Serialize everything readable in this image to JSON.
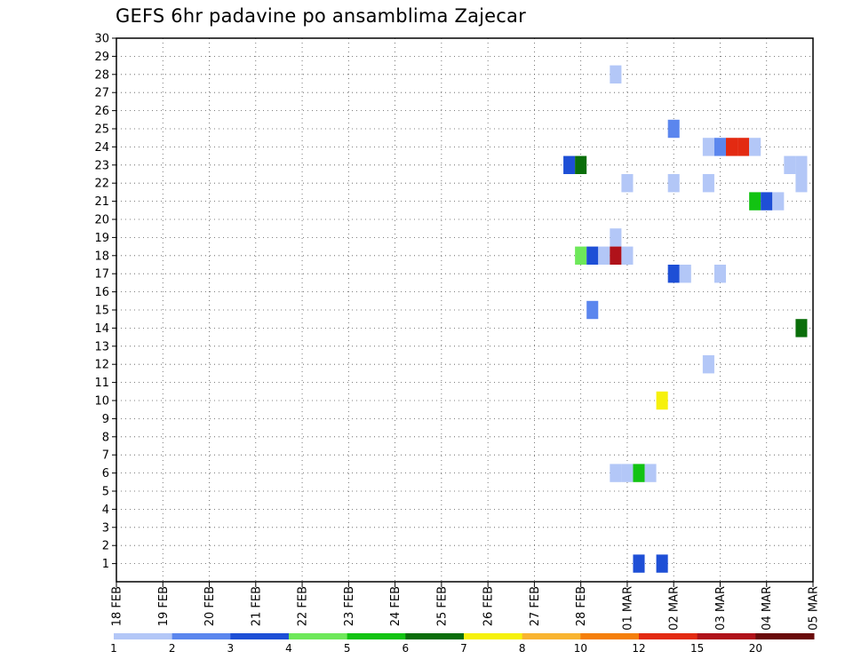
{
  "chart_data": {
    "type": "heatmap",
    "title": "GEFS 6hr padavine po ansamblima Zajecar",
    "x_tick_labels": [
      "18 FEB",
      "19 FEB",
      "20 FEB",
      "21 FEB",
      "22 FEB",
      "23 FEB",
      "24 FEB",
      "25 FEB",
      "26 FEB",
      "27 FEB",
      "28 FEB",
      "01 MAR",
      "02 MAR",
      "03 MAR",
      "04 MAR",
      "05 MAR"
    ],
    "y_tick_labels": [
      "1",
      "2",
      "3",
      "4",
      "5",
      "6",
      "7",
      "8",
      "9",
      "10",
      "11",
      "12",
      "13",
      "14",
      "15",
      "16",
      "17",
      "18",
      "19",
      "20",
      "21",
      "22",
      "23",
      "24",
      "25",
      "26",
      "27",
      "28",
      "29",
      "30"
    ],
    "xlim": [
      "18 FEB",
      "05 MAR"
    ],
    "ylim": [
      0,
      30
    ],
    "grid": true,
    "color_scale": {
      "colors": [
        "#b3c7f7",
        "#5b86ee",
        "#1e4fd6",
        "#6ee85a",
        "#12c312",
        "#0a6e0a",
        "#f6f10c",
        "#f9b430",
        "#f57f0a",
        "#e32a12",
        "#b0121a",
        "#6a0a0a"
      ],
      "labels": [
        "1",
        "2",
        "3",
        "4",
        "5",
        "6",
        "7",
        "8",
        "10",
        "12",
        "15",
        "20"
      ]
    },
    "cells": [
      {
        "date": "28 FEB",
        "hour": 18,
        "member": 28,
        "level": 0
      },
      {
        "date": "02 MAR",
        "hour": 0,
        "member": 25,
        "level": 1
      },
      {
        "date": "02 MAR",
        "hour": 18,
        "member": 24,
        "level": 0
      },
      {
        "date": "03 MAR",
        "hour": 0,
        "member": 24,
        "level": 1
      },
      {
        "date": "03 MAR",
        "hour": 6,
        "member": 24,
        "level": 9
      },
      {
        "date": "03 MAR",
        "hour": 12,
        "member": 24,
        "level": 9
      },
      {
        "date": "03 MAR",
        "hour": 18,
        "member": 24,
        "level": 0
      },
      {
        "date": "27 FEB",
        "hour": 18,
        "member": 23,
        "level": 2
      },
      {
        "date": "28 FEB",
        "hour": 0,
        "member": 23,
        "level": 5
      },
      {
        "date": "04 MAR",
        "hour": 12,
        "member": 23,
        "level": 0
      },
      {
        "date": "04 MAR",
        "hour": 18,
        "member": 23,
        "level": 0
      },
      {
        "date": "01 MAR",
        "hour": 0,
        "member": 22,
        "level": 0
      },
      {
        "date": "02 MAR",
        "hour": 0,
        "member": 22,
        "level": 0
      },
      {
        "date": "02 MAR",
        "hour": 18,
        "member": 22,
        "level": 0
      },
      {
        "date": "04 MAR",
        "hour": 18,
        "member": 22,
        "level": 0
      },
      {
        "date": "03 MAR",
        "hour": 18,
        "member": 21,
        "level": 4
      },
      {
        "date": "04 MAR",
        "hour": 0,
        "member": 21,
        "level": 2
      },
      {
        "date": "04 MAR",
        "hour": 6,
        "member": 21,
        "level": 0
      },
      {
        "date": "28 FEB",
        "hour": 18,
        "member": 19,
        "level": 0
      },
      {
        "date": "28 FEB",
        "hour": 0,
        "member": 18,
        "level": 3
      },
      {
        "date": "28 FEB",
        "hour": 6,
        "member": 18,
        "level": 2
      },
      {
        "date": "28 FEB",
        "hour": 12,
        "member": 18,
        "level": 0
      },
      {
        "date": "28 FEB",
        "hour": 18,
        "member": 18,
        "level": 10
      },
      {
        "date": "01 MAR",
        "hour": 0,
        "member": 18,
        "level": 0
      },
      {
        "date": "02 MAR",
        "hour": 0,
        "member": 17,
        "level": 2
      },
      {
        "date": "02 MAR",
        "hour": 6,
        "member": 17,
        "level": 0
      },
      {
        "date": "03 MAR",
        "hour": 0,
        "member": 17,
        "level": 0
      },
      {
        "date": "28 FEB",
        "hour": 6,
        "member": 15,
        "level": 1
      },
      {
        "date": "04 MAR",
        "hour": 18,
        "member": 14,
        "level": 5
      },
      {
        "date": "02 MAR",
        "hour": 18,
        "member": 12,
        "level": 0
      },
      {
        "date": "01 MAR",
        "hour": 18,
        "member": 10,
        "level": 6
      },
      {
        "date": "28 FEB",
        "hour": 18,
        "member": 6,
        "level": 0
      },
      {
        "date": "01 MAR",
        "hour": 0,
        "member": 6,
        "level": 0
      },
      {
        "date": "01 MAR",
        "hour": 6,
        "member": 6,
        "level": 4
      },
      {
        "date": "01 MAR",
        "hour": 12,
        "member": 6,
        "level": 0
      },
      {
        "date": "01 MAR",
        "hour": 6,
        "member": 1,
        "level": 2
      },
      {
        "date": "01 MAR",
        "hour": 18,
        "member": 1,
        "level": 2
      }
    ]
  }
}
